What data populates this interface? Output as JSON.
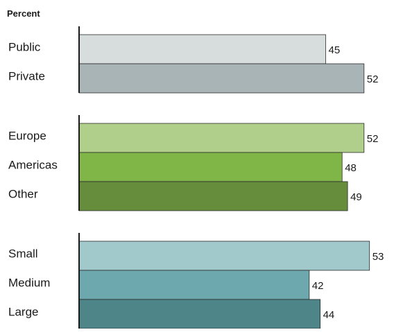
{
  "chart_data": {
    "type": "bar",
    "orientation": "horizontal",
    "ylabel": "Percent",
    "xlim": [
      0,
      53
    ],
    "grid": false,
    "legend": "none",
    "groups": [
      {
        "bars": [
          {
            "label": "Public",
            "value": 45,
            "color": "#d7dcdc"
          },
          {
            "label": "Private",
            "value": 52,
            "color": "#a9b4b6"
          }
        ]
      },
      {
        "bars": [
          {
            "label": "Europe",
            "value": 52,
            "color": "#b0cf8a"
          },
          {
            "label": "Americas",
            "value": 48,
            "color": "#80b548"
          },
          {
            "label": "Other",
            "value": 49,
            "color": "#658d3c"
          }
        ]
      },
      {
        "bars": [
          {
            "label": "Small",
            "value": 53,
            "color": "#a1c8cb"
          },
          {
            "label": "Medium",
            "value": 42,
            "color": "#6da8ae"
          },
          {
            "label": "Large",
            "value": 44,
            "color": "#4e8589"
          }
        ]
      }
    ]
  }
}
